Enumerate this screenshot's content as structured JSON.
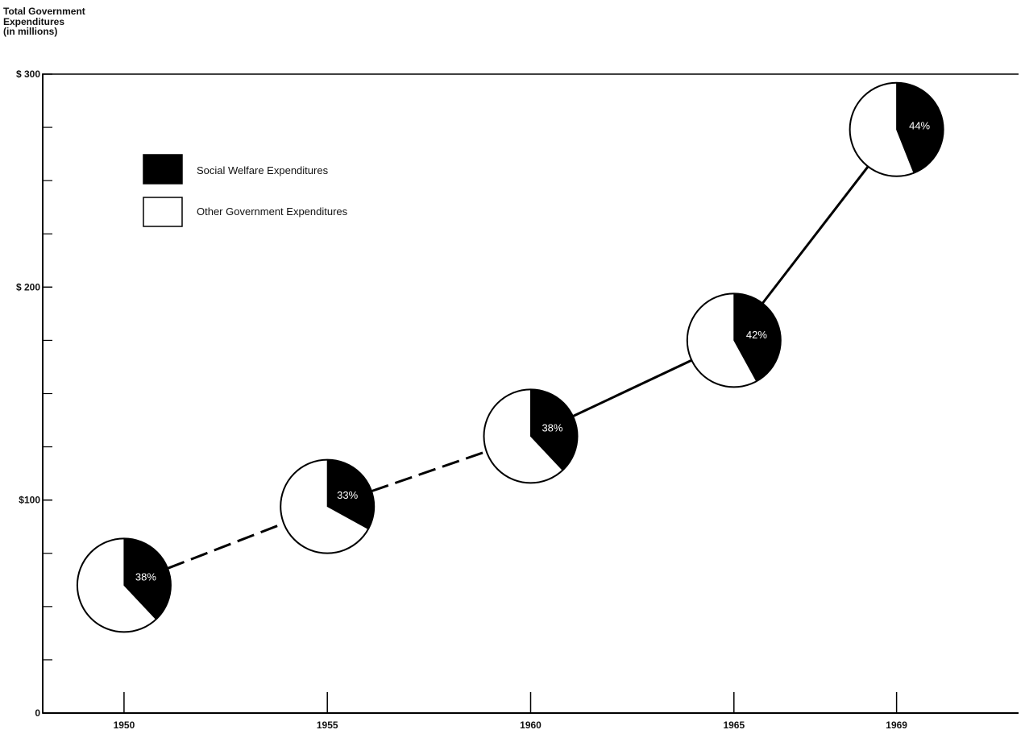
{
  "chart_data": {
    "type": "line",
    "ylabel_lines": [
      "Total Government",
      "Expenditures",
      "(in millions)"
    ],
    "x": [
      "1950",
      "1955",
      "1960",
      "1965",
      "1969"
    ],
    "x_numeric": [
      1950,
      1955,
      1960,
      1965,
      1969
    ],
    "xlim": [
      1948,
      1972
    ],
    "ylim": [
      0,
      300
    ],
    "yticks": [
      {
        "value": 0,
        "label": "0"
      },
      {
        "value": 100,
        "label": "$100"
      },
      {
        "value": 200,
        "label": "$ 200"
      },
      {
        "value": 300,
        "label": "$ 300"
      }
    ],
    "yminor": [
      25,
      50,
      75,
      125,
      150,
      175,
      225,
      250,
      275
    ],
    "series": [
      {
        "values": [
          60,
          97,
          130,
          175,
          274
        ],
        "social_welfare_share_percent": [
          38,
          33,
          38,
          42,
          44
        ],
        "share_labels": [
          "38%",
          "33%",
          "38%",
          "42%",
          "44%"
        ]
      }
    ],
    "segment_styles": [
      "dashed",
      "dashed",
      "solid",
      "solid"
    ],
    "legend": [
      {
        "label": "Social Welfare Expenditures",
        "color": "#000000"
      },
      {
        "label": "Other Government Expenditures",
        "color": "#ffffff"
      }
    ],
    "legend_position": "top-left",
    "grid": false
  }
}
